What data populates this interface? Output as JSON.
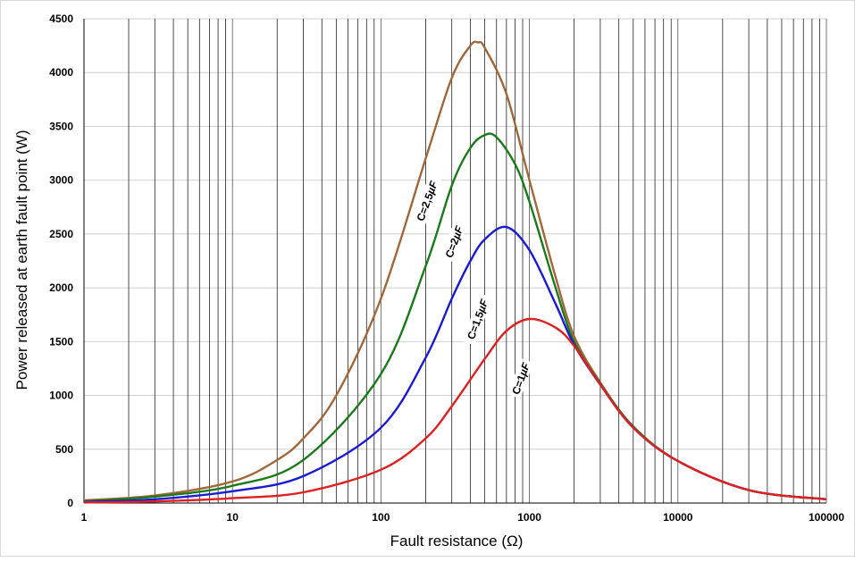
{
  "chart_data": {
    "type": "line",
    "title": "",
    "xlabel": "Fault resistance (Ω)",
    "ylabel": "Power released at earth fault point (W)",
    "x_scale": "log",
    "xlim": [
      1,
      100000
    ],
    "ylim": [
      0,
      4500
    ],
    "x_ticks": [
      "1",
      "10",
      "100",
      "1000",
      "10000",
      "100000"
    ],
    "y_ticks": [
      "0",
      "500",
      "1000",
      "1500",
      "2000",
      "2500",
      "3000",
      "3500",
      "4000",
      "4500"
    ],
    "grid": {
      "x_minor_log": true,
      "y_major": true
    },
    "colors": {
      "c1": "#e02020",
      "c15": "#1a1ad6",
      "c2": "#1a7a1a",
      "c25": "#a0673a",
      "grid_major": "#555555",
      "grid_minor": "#222222",
      "hgrid": "#d0d0d0"
    },
    "series": [
      {
        "name": "C=1 µF",
        "label_text": "C=1",
        "label_unit": "µF",
        "color": "#e02020",
        "label_x": 900,
        "label_y": 1150,
        "x": [
          1,
          3,
          10,
          30,
          100,
          200,
          300,
          500,
          700,
          1000,
          1500,
          2000,
          3000,
          5000,
          10000,
          30000,
          100000
        ],
        "y": [
          5,
          15,
          45,
          100,
          310,
          600,
          900,
          1340,
          1600,
          1710,
          1630,
          1460,
          1100,
          700,
          390,
          120,
          35
        ]
      },
      {
        "name": "C=1,5 µF",
        "label_text": "C=1,5",
        "label_unit": "µF",
        "color": "#1a1ad6",
        "label_x": 460,
        "label_y": 1700,
        "x": [
          1,
          3,
          10,
          30,
          100,
          200,
          300,
          400,
          500,
          700,
          1000,
          1500,
          2000,
          3000,
          5000,
          10000,
          30000,
          100000
        ],
        "y": [
          10,
          35,
          110,
          250,
          700,
          1350,
          1900,
          2250,
          2450,
          2565,
          2350,
          1850,
          1470,
          1100,
          700,
          390,
          120,
          35
        ]
      },
      {
        "name": "C=2 µF",
        "label_text": "C=2",
        "label_unit": "µF",
        "color": "#1a7a1a",
        "label_x": 320,
        "label_y": 2420,
        "x": [
          1,
          3,
          10,
          30,
          100,
          200,
          300,
          400,
          500,
          600,
          800,
          1000,
          1500,
          2000,
          3000,
          5000,
          10000,
          30000,
          100000
        ],
        "y": [
          15,
          60,
          160,
          400,
          1200,
          2200,
          2950,
          3300,
          3420,
          3400,
          3150,
          2800,
          2000,
          1500,
          1110,
          710,
          390,
          120,
          35
        ]
      },
      {
        "name": "C=2,5 µF",
        "label_text": "C=2,5",
        "label_unit": "µF",
        "color": "#a0673a",
        "label_x": 210,
        "label_y": 2800,
        "x": [
          1,
          3,
          10,
          20,
          30,
          50,
          100,
          200,
          300,
          400,
          450,
          500,
          700,
          1000,
          1500,
          2000,
          3000,
          5000,
          10000,
          30000,
          100000
        ],
        "y": [
          25,
          70,
          200,
          400,
          600,
          1000,
          1900,
          3200,
          3950,
          4250,
          4280,
          4230,
          3800,
          3000,
          2100,
          1550,
          1120,
          710,
          390,
          120,
          35
        ]
      }
    ]
  }
}
